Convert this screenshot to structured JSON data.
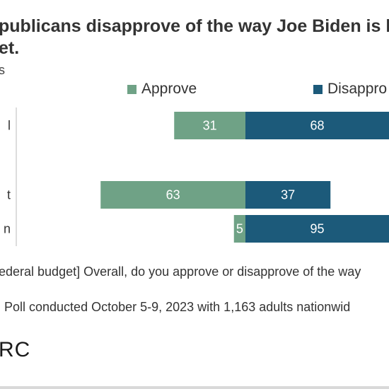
{
  "title": "publicans disapprove of the way Joe Biden is h",
  "title_line2": "et.",
  "subtitle": "s",
  "legend": [
    {
      "label": "Approve",
      "color": "#6fa286"
    },
    {
      "label": "Disappro",
      "color": "#1c5a7a"
    }
  ],
  "note": "ederal budget] Overall, do you approve or disapprove of the way",
  "source": "Poll conducted October 5-9, 2023 with 1,163 adults nationwid",
  "logo": "RC",
  "chart_data": {
    "type": "bar",
    "orientation": "horizontal",
    "stacked": "diverging",
    "categories": [
      "l",
      "",
      "t",
      "n"
    ],
    "series": [
      {
        "name": "Approve",
        "color": "#6fa286",
        "values": [
          31,
          null,
          63,
          5
        ]
      },
      {
        "name": "Disappro",
        "color": "#1c5a7a",
        "values": [
          68,
          null,
          37,
          95
        ]
      }
    ],
    "value_labels_color": "#ffffff",
    "legend_position": "top"
  }
}
